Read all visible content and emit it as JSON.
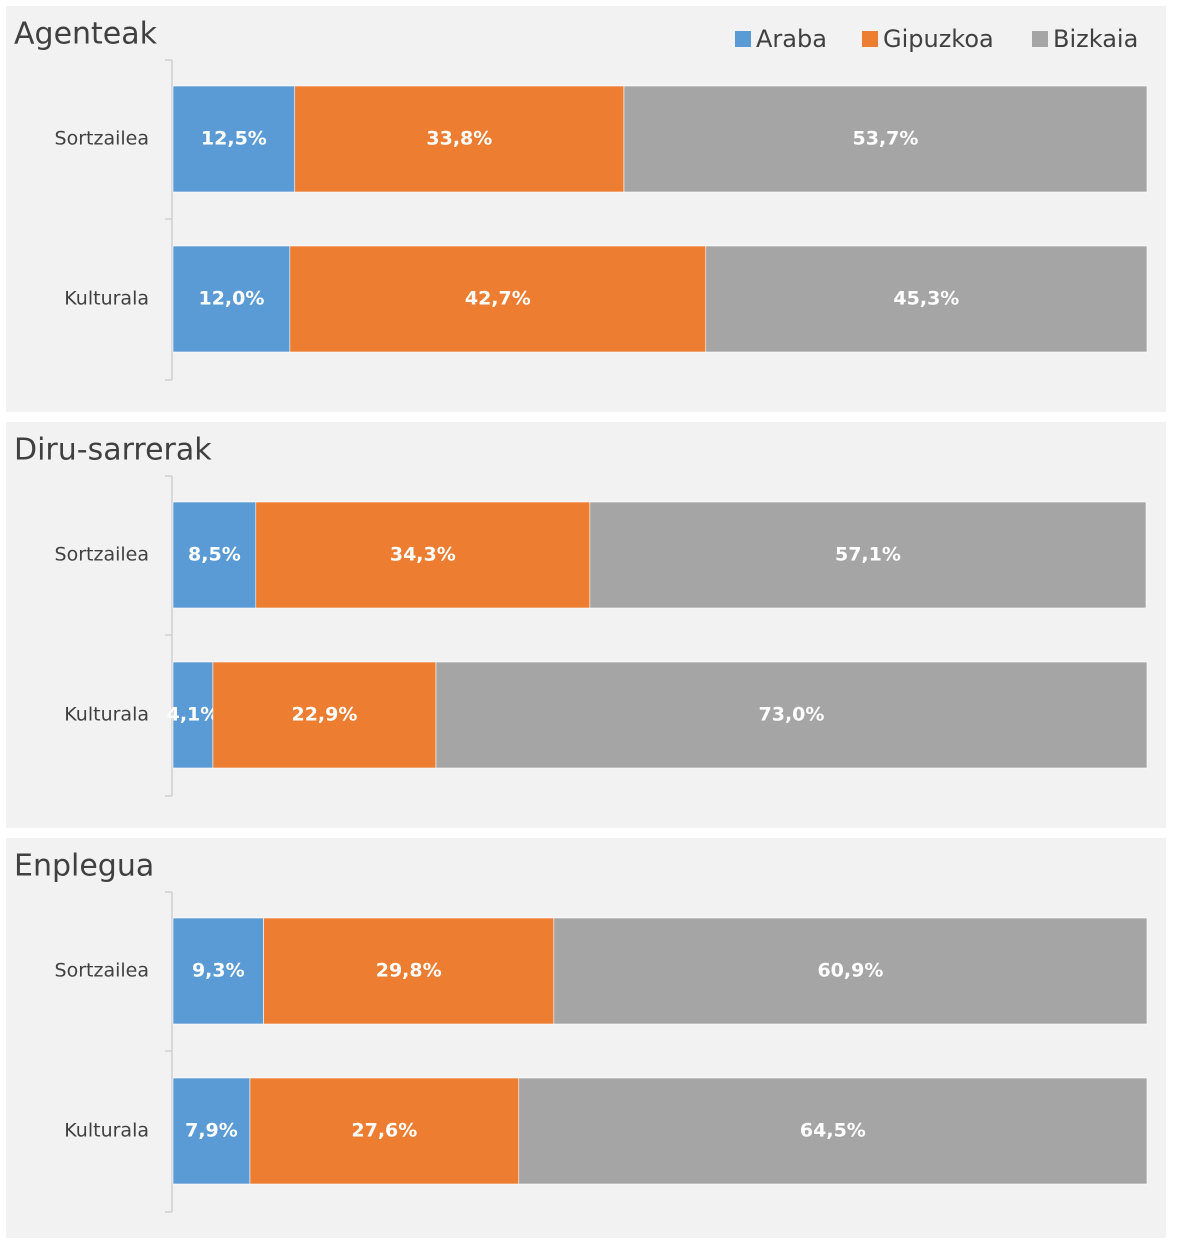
{
  "chart_data": [
    {
      "type": "stacked-bar-horizontal",
      "title": "Agenteak",
      "legend": "top-right",
      "xlim": [
        0,
        100
      ],
      "categories": [
        "Sortzailea",
        "Kulturala"
      ],
      "series": [
        {
          "name": "Araba",
          "color": "#5b9bd5",
          "values": [
            12.5,
            12.0
          ],
          "value_labels": [
            "12,5%",
            "12,0%"
          ]
        },
        {
          "name": "Gipuzkoa",
          "color": "#ed7d31",
          "values": [
            33.8,
            42.7
          ],
          "value_labels": [
            "33,8%",
            "42,7%"
          ]
        },
        {
          "name": "Bizkaia",
          "color": "#a5a5a5",
          "values": [
            53.7,
            45.3
          ],
          "value_labels": [
            "53,7%",
            "45,3%"
          ]
        }
      ]
    },
    {
      "type": "stacked-bar-horizontal",
      "title": "Diru-sarrerak",
      "xlim": [
        0,
        100
      ],
      "categories": [
        "Sortzailea",
        "Kulturala"
      ],
      "series": [
        {
          "name": "Araba",
          "color": "#5b9bd5",
          "values": [
            8.5,
            4.1
          ],
          "value_labels": [
            "8,5%",
            "4,1%"
          ]
        },
        {
          "name": "Gipuzkoa",
          "color": "#ed7d31",
          "values": [
            34.3,
            22.9
          ],
          "value_labels": [
            "34,3%",
            "22,9%"
          ]
        },
        {
          "name": "Bizkaia",
          "color": "#a5a5a5",
          "values": [
            57.1,
            73.0
          ],
          "value_labels": [
            "57,1%",
            "73,0%"
          ]
        }
      ]
    },
    {
      "type": "stacked-bar-horizontal",
      "title": "Enplegua",
      "xlim": [
        0,
        100
      ],
      "categories": [
        "Sortzailea",
        "Kulturala"
      ],
      "series": [
        {
          "name": "Araba",
          "color": "#5b9bd5",
          "values": [
            9.3,
            7.9
          ],
          "value_labels": [
            "9,3%",
            "7,9%"
          ]
        },
        {
          "name": "Gipuzkoa",
          "color": "#ed7d31",
          "values": [
            29.8,
            27.6
          ],
          "value_labels": [
            "29,8%",
            "27,6%"
          ]
        },
        {
          "name": "Bizkaia",
          "color": "#a5a5a5",
          "values": [
            60.9,
            64.5
          ],
          "value_labels": [
            "60,9%",
            "64,5%"
          ]
        }
      ]
    }
  ]
}
